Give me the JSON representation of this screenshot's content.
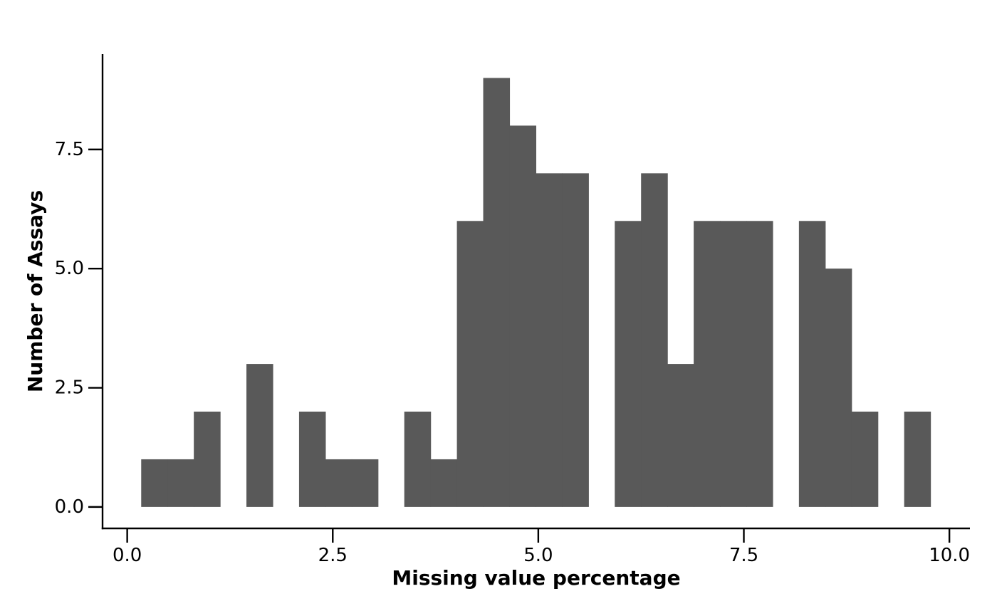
{
  "chart_data": {
    "type": "bar",
    "title": "",
    "xlabel": "Missing value percentage",
    "ylabel": "Number of Assays",
    "xlim": [
      -0.3,
      10.25
    ],
    "ylim": [
      -0.45,
      9.5
    ],
    "x_ticks": [
      0.0,
      2.5,
      5.0,
      7.5,
      10.0
    ],
    "x_tick_labels": [
      "0.0",
      "2.5",
      "5.0",
      "7.5",
      "10.0"
    ],
    "y_ticks": [
      0.0,
      2.5,
      5.0,
      7.5
    ],
    "y_tick_labels": [
      "0.0",
      "2.5",
      "5.0",
      "7.5"
    ],
    "bin_width": 0.32,
    "bin_start": 0.17,
    "counts": [
      1,
      1,
      2,
      0,
      3,
      0,
      2,
      1,
      1,
      0,
      2,
      1,
      6,
      9,
      8,
      7,
      7,
      0,
      6,
      7,
      3,
      6,
      6,
      6,
      0,
      6,
      5,
      2,
      0,
      2
    ],
    "bar_color": "#595959",
    "grid": false,
    "legend": "none"
  }
}
